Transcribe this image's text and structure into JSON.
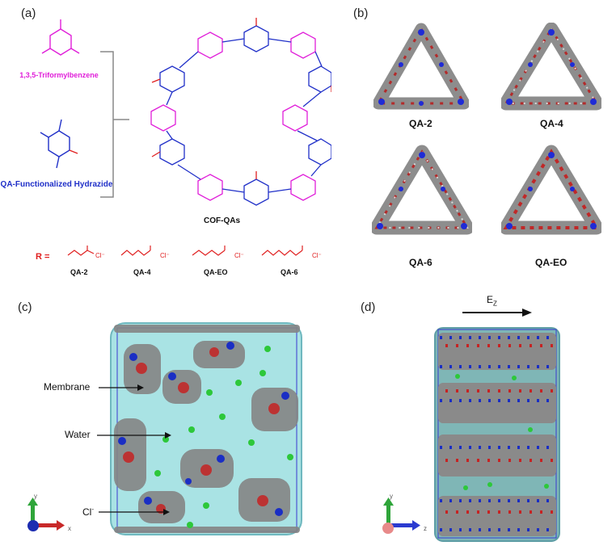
{
  "panels": {
    "a": "(a)",
    "b": "(b)",
    "c": "(c)",
    "d": "(d)"
  },
  "panel_a": {
    "monomer1": "1,3,5-Triformylbenzene",
    "monomer2": "QA-Functionalized Hydrazide",
    "product": "COF-QAs",
    "r_prefix": "R =",
    "r_groups": [
      "QA-2",
      "QA-4",
      "QA-EO",
      "QA-6"
    ],
    "counter_ion": "Cl⁻",
    "colors": {
      "aldehyde": "#e01ed9",
      "hydrazide": "#2030c8",
      "substituent": "#e02020"
    }
  },
  "panel_b": {
    "captions": [
      "QA-2",
      "QA-4",
      "QA-6",
      "QA-EO"
    ]
  },
  "panel_c": {
    "labels": {
      "membrane": "Membrane",
      "water": "Water",
      "chloride": "Cl",
      "chloride_sup": "-"
    },
    "axes": {
      "vertical": "y",
      "horizontal": "x"
    }
  },
  "panel_d": {
    "field": "E",
    "field_sub": "Z",
    "axes": {
      "vertical": "y",
      "horizontal": "z"
    }
  }
}
